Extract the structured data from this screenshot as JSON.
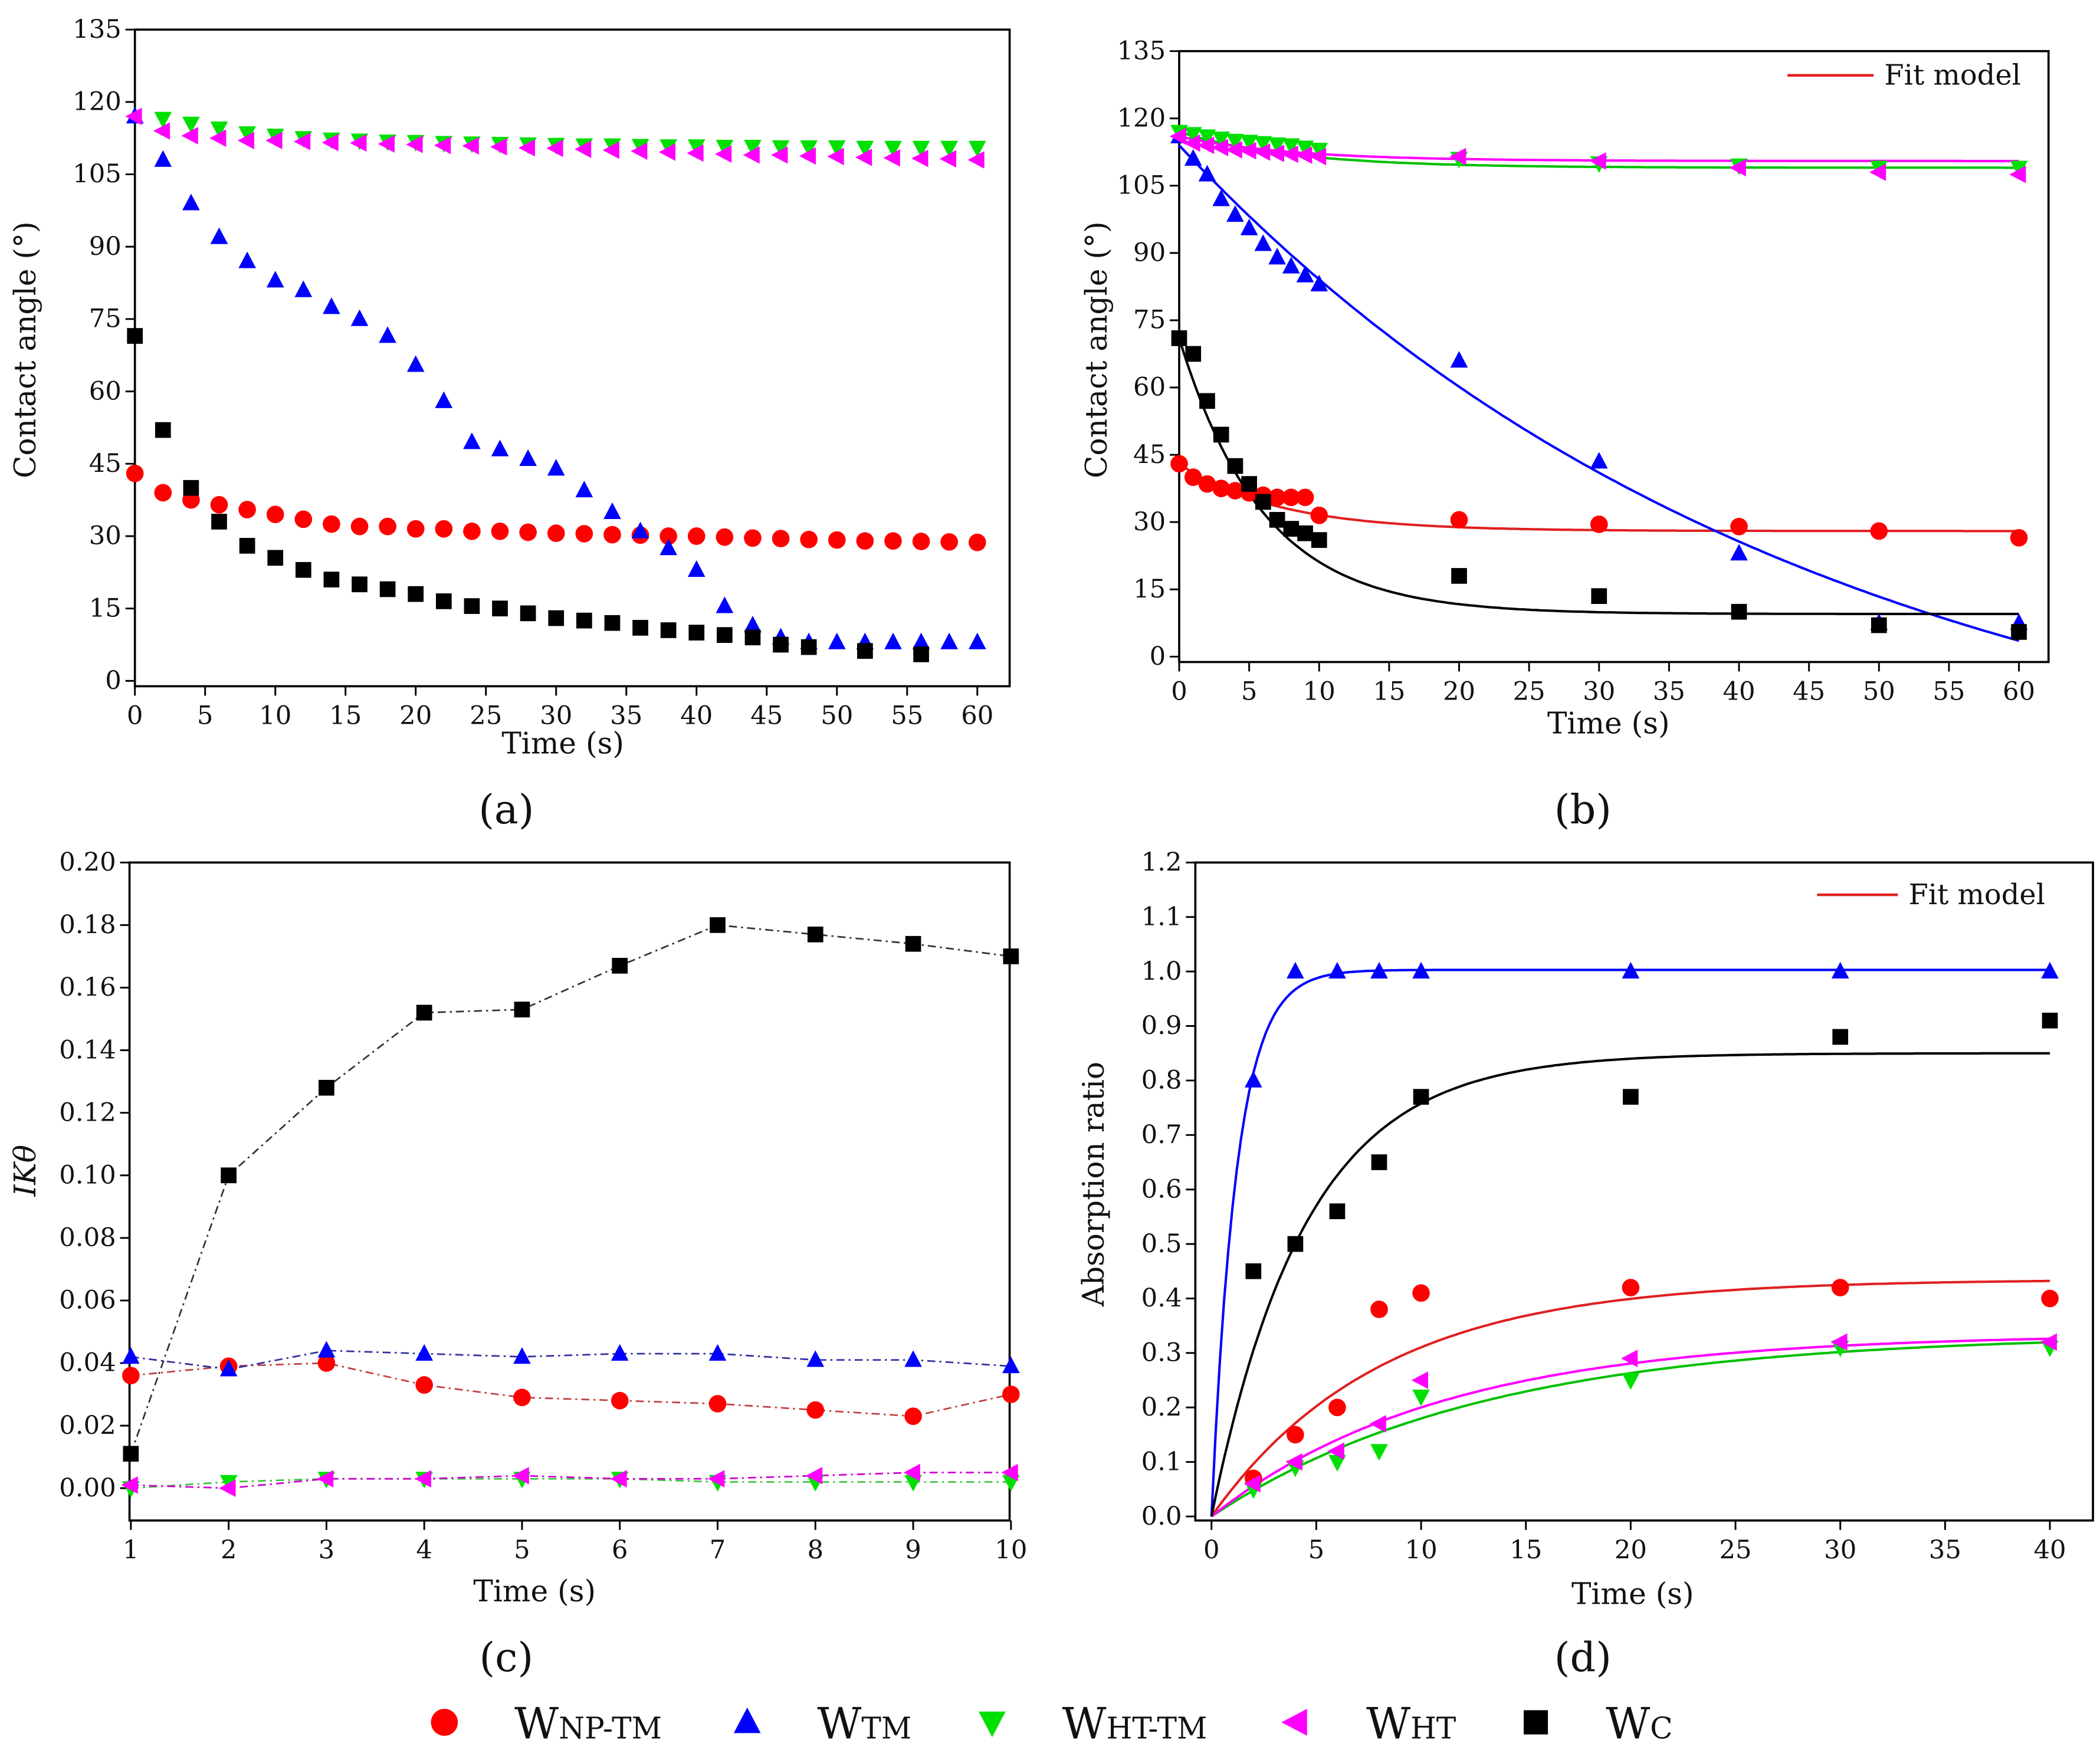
{
  "chart_data": [
    {
      "id": "a",
      "type": "scatter",
      "panel_label": "(a)",
      "xlabel": "Time (s)",
      "ylabel": "Contact angle (°)",
      "xlim": [
        0,
        60
      ],
      "ylim": [
        0,
        135
      ],
      "xticks": [
        0,
        5,
        10,
        15,
        20,
        25,
        30,
        35,
        40,
        45,
        50,
        55,
        60
      ],
      "yticks": [
        0,
        15,
        30,
        45,
        60,
        75,
        90,
        105,
        120,
        135
      ],
      "series": [
        {
          "key": "np",
          "x": [
            0,
            2,
            4,
            6,
            8,
            10,
            12,
            14,
            16,
            18,
            20,
            22,
            24,
            26,
            28,
            30,
            32,
            34,
            36,
            38,
            40,
            42,
            44,
            46,
            48,
            50,
            52,
            54,
            56,
            58,
            60
          ],
          "y": [
            43,
            39,
            37.5,
            36.5,
            35.5,
            34.5,
            33.5,
            32.5,
            32,
            32,
            31.5,
            31.5,
            31,
            31,
            30.8,
            30.6,
            30.5,
            30.3,
            30.2,
            30,
            30,
            29.8,
            29.6,
            29.5,
            29.3,
            29.2,
            29,
            29,
            28.9,
            28.8,
            28.7
          ]
        },
        {
          "key": "tm",
          "x": [
            0,
            2,
            4,
            6,
            8,
            10,
            12,
            14,
            16,
            18,
            20,
            22,
            24,
            26,
            28,
            30,
            32,
            34,
            36,
            38,
            40,
            42,
            44,
            46,
            48,
            50,
            52,
            54,
            56,
            58,
            60
          ],
          "y": [
            117,
            108,
            99,
            92,
            87,
            83,
            81,
            77.5,
            75,
            71.5,
            65.5,
            58,
            49.5,
            48,
            46,
            44,
            39.5,
            35,
            31,
            27.5,
            23,
            15.5,
            11.5,
            9,
            8,
            8,
            8,
            8,
            8,
            8,
            8
          ]
        },
        {
          "key": "hitm",
          "x": [
            2,
            4,
            6,
            8,
            10,
            12,
            14,
            16,
            18,
            20,
            22,
            24,
            26,
            28,
            30,
            32,
            34,
            36,
            38,
            40,
            42,
            44,
            46,
            48,
            50,
            52,
            54,
            56,
            58,
            60
          ],
          "y": [
            116.5,
            115.5,
            114.5,
            113.5,
            113,
            112.5,
            112.2,
            112,
            111.8,
            111.7,
            111.5,
            111.4,
            111.3,
            111.2,
            111.1,
            111,
            111,
            110.9,
            110.8,
            110.8,
            110.7,
            110.7,
            110.6,
            110.6,
            110.6,
            110.5,
            110.5,
            110.5,
            110.5,
            110.5
          ]
        },
        {
          "key": "hit",
          "x": [
            0,
            2,
            4,
            6,
            8,
            10,
            12,
            14,
            16,
            18,
            20,
            22,
            24,
            26,
            28,
            30,
            32,
            34,
            36,
            38,
            40,
            42,
            44,
            46,
            48,
            50,
            52,
            54,
            56,
            58,
            60
          ],
          "y": [
            117,
            114,
            113,
            112.5,
            112,
            112,
            111.8,
            111.6,
            111.5,
            111.3,
            111.2,
            111,
            110.9,
            110.7,
            110.5,
            110.4,
            110.2,
            110,
            109.8,
            109.6,
            109.4,
            109.2,
            109,
            109,
            108.8,
            108.7,
            108.5,
            108.4,
            108.3,
            108.2,
            108
          ]
        },
        {
          "key": "c",
          "x": [
            0,
            2,
            4,
            6,
            8,
            10,
            12,
            14,
            16,
            18,
            20,
            22,
            24,
            26,
            28,
            30,
            32,
            34,
            36,
            38,
            40,
            42,
            44,
            46,
            48,
            52,
            56
          ],
          "y": [
            71.5,
            52,
            40,
            33,
            28,
            25.5,
            23,
            21,
            20,
            19,
            18,
            16.5,
            15.5,
            15,
            14,
            13,
            12.5,
            12,
            11,
            10.5,
            10,
            9.5,
            9,
            7.5,
            7,
            6.2,
            5.5
          ]
        }
      ]
    },
    {
      "id": "b",
      "type": "scatter",
      "panel_label": "(b)",
      "xlabel": "Time (s)",
      "ylabel": "Contact angle (°)",
      "xlim": [
        0,
        60
      ],
      "ylim": [
        0,
        135
      ],
      "xticks": [
        0,
        5,
        10,
        15,
        20,
        25,
        30,
        35,
        40,
        45,
        50,
        55,
        60
      ],
      "yticks": [
        0,
        15,
        30,
        45,
        60,
        75,
        90,
        105,
        120,
        135
      ],
      "fit_legend": "Fit model",
      "series": [
        {
          "key": "np",
          "x": [
            0,
            1,
            2,
            3,
            4,
            5,
            6,
            7,
            8,
            9,
            10,
            20,
            30,
            40,
            50,
            60
          ],
          "y": [
            43,
            40,
            38.5,
            37.5,
            37,
            36.5,
            36,
            35.5,
            35.5,
            35.5,
            31.5,
            30.5,
            29.5,
            29,
            28,
            26.5
          ],
          "fit": {
            "model": "y0+A*exp(-t/tau)",
            "y0": 28,
            "A": 15,
            "tau": 7
          }
        },
        {
          "key": "tm",
          "x": [
            0,
            1,
            2,
            3,
            4,
            5,
            6,
            7,
            8,
            9,
            10,
            20,
            30,
            40,
            50,
            60
          ],
          "y": [
            116,
            111,
            107.5,
            102,
            98.5,
            95.5,
            92,
            89,
            87,
            85,
            83,
            66,
            43.5,
            23,
            7.5,
            7.5
          ],
          "fit": {
            "model": "y0+A*exp(-t/tau)",
            "y0": -36,
            "A": 150,
            "tau": 45
          }
        },
        {
          "key": "hitm",
          "x": [
            0,
            1,
            2,
            3,
            4,
            5,
            6,
            7,
            8,
            9,
            10,
            20,
            30,
            40,
            50,
            60
          ],
          "y": [
            117,
            116.5,
            116,
            115.5,
            115,
            114.8,
            114.5,
            114.2,
            114,
            113.5,
            113,
            111,
            110,
            109.5,
            109,
            109
          ],
          "fit": {
            "model": "y0+A*exp(-t/tau)",
            "y0": 109,
            "A": 8,
            "tau": 8
          }
        },
        {
          "key": "hit",
          "x": [
            0,
            1,
            2,
            3,
            4,
            5,
            6,
            7,
            8,
            9,
            10,
            20,
            30,
            40,
            50,
            60
          ],
          "y": [
            116,
            114.5,
            114,
            113.5,
            113,
            112.8,
            112.5,
            112.2,
            112,
            111.8,
            111.5,
            111.5,
            110.5,
            109,
            108,
            107.5
          ],
          "fit": {
            "model": "y0+A*exp(-t/tau)",
            "y0": 110.5,
            "A": 5.5,
            "tau": 8
          }
        },
        {
          "key": "c",
          "x": [
            0,
            1,
            2,
            3,
            4,
            5,
            6,
            7,
            8,
            9,
            10,
            20,
            30,
            40,
            50,
            60
          ],
          "y": [
            71,
            67.5,
            57,
            49.5,
            42.5,
            38.5,
            34.5,
            30.5,
            28.5,
            27.5,
            26,
            18,
            13.5,
            10,
            7,
            5.5
          ],
          "fit": {
            "model": "y0+A*exp(-t/tau)",
            "y0": 9.5,
            "A": 61.5,
            "tau": 6
          }
        }
      ]
    },
    {
      "id": "c",
      "type": "line",
      "panel_label": "(c)",
      "xlabel": "Time (s)",
      "ylabel": "IKθ",
      "xlim": [
        0.5,
        10.5
      ],
      "ylim": [
        -0.01,
        0.2
      ],
      "xticks": [
        1,
        2,
        3,
        4,
        5,
        6,
        7,
        8,
        9,
        10
      ],
      "yticks": [
        "0.00",
        "0.02",
        "0.04",
        "0.06",
        "0.08",
        "0.10",
        "0.12",
        "0.14",
        "0.16",
        "0.18",
        "0.20"
      ],
      "series": [
        {
          "key": "np",
          "x": [
            1,
            2,
            3,
            4,
            5,
            6,
            7,
            8,
            9,
            10
          ],
          "y": [
            0.036,
            0.039,
            0.04,
            0.033,
            0.029,
            0.028,
            0.027,
            0.025,
            0.023,
            0.03
          ]
        },
        {
          "key": "tm",
          "x": [
            1,
            2,
            3,
            4,
            5,
            6,
            7,
            8,
            9,
            10
          ],
          "y": [
            0.042,
            0.038,
            0.044,
            0.043,
            0.042,
            0.043,
            0.043,
            0.041,
            0.041,
            0.039
          ]
        },
        {
          "key": "hitm",
          "x": [
            1,
            2,
            3,
            4,
            5,
            6,
            7,
            8,
            9,
            10
          ],
          "y": [
            0.0,
            0.002,
            0.003,
            0.003,
            0.003,
            0.003,
            0.002,
            0.002,
            0.002,
            0.002
          ]
        },
        {
          "key": "hit",
          "x": [
            1,
            2,
            3,
            4,
            5,
            6,
            7,
            8,
            9,
            10
          ],
          "y": [
            0.001,
            0.0,
            0.003,
            0.003,
            0.004,
            0.003,
            0.003,
            0.004,
            0.005,
            0.005
          ]
        },
        {
          "key": "c",
          "x": [
            1,
            2,
            3,
            4,
            5,
            6,
            7,
            8,
            9,
            10
          ],
          "y": [
            0.011,
            0.1,
            0.128,
            0.152,
            0.153,
            0.167,
            0.18,
            0.177,
            0.174,
            0.17
          ]
        }
      ]
    },
    {
      "id": "d",
      "type": "scatter",
      "panel_label": "(d)",
      "xlabel": "Time (s)",
      "ylabel": "Absorption ratio",
      "xlim": [
        0,
        40
      ],
      "ylim": [
        0,
        1.2
      ],
      "xticks": [
        0,
        5,
        10,
        15,
        20,
        25,
        30,
        35,
        40
      ],
      "yticks": [
        "0.0",
        "0.1",
        "0.2",
        "0.3",
        "0.4",
        "0.5",
        "0.6",
        "0.7",
        "0.8",
        "0.9",
        "1.0",
        "1.1",
        "1.2"
      ],
      "fit_legend": "Fit model",
      "series": [
        {
          "key": "np",
          "x": [
            2,
            4,
            6,
            8,
            10,
            20,
            30,
            40
          ],
          "y": [
            0.07,
            0.15,
            0.2,
            0.38,
            0.41,
            0.42,
            0.42,
            0.4
          ],
          "fit": {
            "model": "A*(1-exp(-t/tau))",
            "A": 0.435,
            "tau": 8
          }
        },
        {
          "key": "tm",
          "x": [
            2,
            4,
            6,
            8,
            10,
            20,
            30,
            40
          ],
          "y": [
            0.8,
            1.0,
            1.0,
            1.0,
            1.0,
            1.0,
            1.0,
            1.0
          ],
          "fit": {
            "model": "A*(1-exp(-t/tau))",
            "A": 1.003,
            "tau": 1.2
          }
        },
        {
          "key": "hitm",
          "x": [
            2,
            4,
            6,
            8,
            10,
            20,
            30,
            40
          ],
          "y": [
            0.05,
            0.09,
            0.1,
            0.12,
            0.22,
            0.25,
            0.31,
            0.31
          ],
          "fit": {
            "model": "A*(1-exp(-t/tau))",
            "A": 0.335,
            "tau": 13
          }
        },
        {
          "key": "hit",
          "x": [
            2,
            4,
            6,
            8,
            10,
            20,
            30,
            40
          ],
          "y": [
            0.06,
            0.1,
            0.12,
            0.17,
            0.25,
            0.29,
            0.32,
            0.32
          ],
          "fit": {
            "model": "A*(1-exp(-t/tau))",
            "A": 0.335,
            "tau": 11
          }
        },
        {
          "key": "c",
          "x": [
            2,
            4,
            6,
            8,
            10,
            20,
            30,
            40
          ],
          "y": [
            0.45,
            0.5,
            0.56,
            0.65,
            0.77,
            0.77,
            0.88,
            0.91
          ],
          "fit": {
            "model": "A*(1-exp(-t/tau))",
            "A": 0.85,
            "tau": 4.5
          }
        }
      ]
    }
  ],
  "legend": [
    {
      "key": "np",
      "main": "W",
      "sub": "NP-TM",
      "marker": "circle",
      "color": "#ff0000",
      "line_color": "#c04040"
    },
    {
      "key": "tm",
      "main": "W",
      "sub": "TM",
      "marker": "triangle-up",
      "color": "#0000ff",
      "line_color": "#3030a0"
    },
    {
      "key": "hitm",
      "main": "W",
      "sub": "HT-TM",
      "marker": "triangle-down",
      "color": "#00e000",
      "line_color": "#40c040"
    },
    {
      "key": "hit",
      "main": "W",
      "sub": "HT",
      "marker": "triangle-left",
      "color": "#ff00ff",
      "line_color": "#d000d0"
    },
    {
      "key": "c",
      "main": "W",
      "sub": "C",
      "marker": "square",
      "color": "#000000",
      "line_color": "#333333"
    }
  ],
  "fit_color": "#e02020"
}
